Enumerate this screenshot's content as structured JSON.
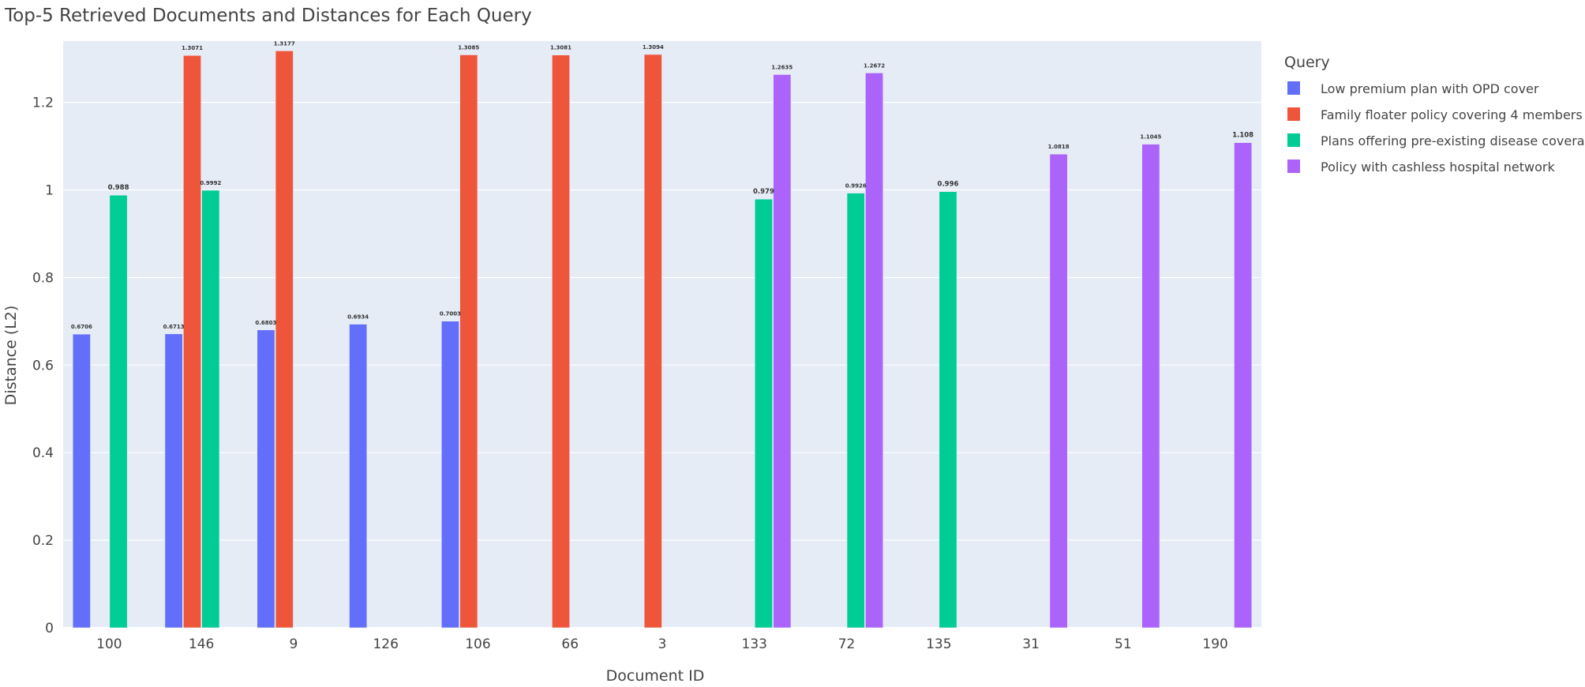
{
  "chart_data": {
    "type": "bar",
    "title": "Top-5 Retrieved Documents and Distances for Each Query",
    "xlabel": "Document ID",
    "ylabel": "Distance (L2)",
    "ylim": [
      0,
      1.34
    ],
    "yticks": [
      0,
      0.2,
      0.4,
      0.6,
      0.8,
      1,
      1.2
    ],
    "ytick_labels": [
      "0",
      "0.2",
      "0.4",
      "0.6",
      "0.8",
      "1",
      "1.2"
    ],
    "grid": true,
    "legend_position": "top-right",
    "legend_title": "Query",
    "categories": [
      "100",
      "146",
      "9",
      "126",
      "106",
      "66",
      "3",
      "133",
      "72",
      "135",
      "31",
      "51",
      "190"
    ],
    "series": [
      {
        "name": "Low premium plan with OPD cover",
        "color": "#636efa",
        "points": [
          {
            "x": "100",
            "value": 0.6706,
            "label": "0.6706"
          },
          {
            "x": "146",
            "value": 0.6713,
            "label": "0.6713"
          },
          {
            "x": "9",
            "value": 0.6803,
            "label": "0.6803"
          },
          {
            "x": "126",
            "value": 0.6934,
            "label": "0.6934"
          },
          {
            "x": "106",
            "value": 0.7003,
            "label": "0.7003"
          }
        ]
      },
      {
        "name": "Family floater policy covering 4 members",
        "color": "#ef553b",
        "points": [
          {
            "x": "146",
            "value": 1.3071,
            "label": "1.3071"
          },
          {
            "x": "9",
            "value": 1.3177,
            "label": "1.3177"
          },
          {
            "x": "106",
            "value": 1.3085,
            "label": "1.3085"
          },
          {
            "x": "66",
            "value": 1.3081,
            "label": "1.3081"
          },
          {
            "x": "3",
            "value": 1.3094,
            "label": "1.3094"
          }
        ]
      },
      {
        "name": "Plans offering pre-existing disease coverage",
        "color": "#00cc96",
        "points": [
          {
            "x": "100",
            "value": 0.988,
            "label": "0.988"
          },
          {
            "x": "146",
            "value": 0.9992,
            "label": "0.9992"
          },
          {
            "x": "133",
            "value": 0.979,
            "label": "0.979"
          },
          {
            "x": "72",
            "value": 0.9926,
            "label": "0.9926"
          },
          {
            "x": "135",
            "value": 0.996,
            "label": "0.996"
          }
        ]
      },
      {
        "name": "Policy with cashless hospital network",
        "color": "#ab63fa",
        "points": [
          {
            "x": "133",
            "value": 1.2635,
            "label": "1.2635"
          },
          {
            "x": "72",
            "value": 1.2672,
            "label": "1.2672"
          },
          {
            "x": "31",
            "value": 1.0818,
            "label": "1.0818"
          },
          {
            "x": "51",
            "value": 1.1045,
            "label": "1.1045"
          },
          {
            "x": "190",
            "value": 1.108,
            "label": "1.108"
          }
        ]
      }
    ]
  }
}
